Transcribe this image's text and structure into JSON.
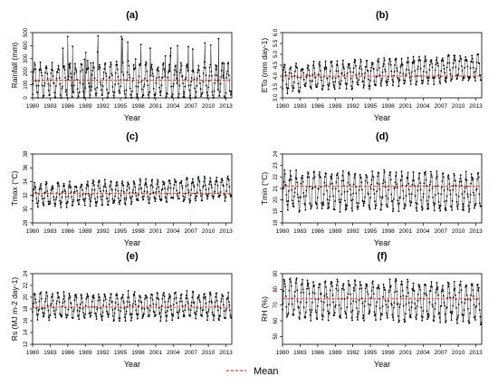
{
  "figure": {
    "mean_legend_label": "Mean",
    "colors": {
      "series": "#222222",
      "points": "#000000",
      "mean": "#e8413c",
      "axis": "#000000",
      "background": "#ffffff"
    }
  },
  "chart_data": [
    {
      "type": "line",
      "panel": "(a)",
      "ylabel": "Rainfall (mm)",
      "xlabel": "Year",
      "xlim": [
        1980,
        2014
      ],
      "ylim": [
        0,
        500
      ],
      "xticks": [
        "1980",
        "1983",
        "1986",
        "1989",
        "1992",
        "1995",
        "1998",
        "2001",
        "2004",
        "2007",
        "2010",
        "2013"
      ],
      "yticks": [
        "0",
        "100",
        "200",
        "300",
        "400",
        "500"
      ],
      "series": [
        {
          "x_start": 1980,
          "x_end": 2013.917,
          "step": "monthly",
          "seasonal_low": 10,
          "seasonal_high": 250,
          "peak_max": 480,
          "mean": 135
        }
      ]
    },
    {
      "type": "line",
      "panel": "(b)",
      "ylabel": "ETo (mm day-1)",
      "xlabel": "Year",
      "xlim": [
        1980,
        2014
      ],
      "ylim": [
        3.0,
        6.0
      ],
      "xticks": [
        "1980",
        "1983",
        "1986",
        "1989",
        "1992",
        "1995",
        "1998",
        "2001",
        "2004",
        "2007",
        "2010",
        "2013"
      ],
      "yticks": [
        "3.0",
        "3.5",
        "4.0",
        "4.5",
        "5.0",
        "5.5",
        "6.0"
      ],
      "series": [
        {
          "x_start": 1980,
          "x_end": 2013.917,
          "step": "monthly",
          "seasonal_low": 3.6,
          "seasonal_high": 4.7,
          "trend_per_year": 0.015,
          "mean": 4.0
        }
      ]
    },
    {
      "type": "line",
      "panel": "(c)",
      "ylabel": "Tmax (°C)",
      "xlabel": "Year",
      "xlim": [
        1980,
        2014
      ],
      "ylim": [
        28,
        38
      ],
      "xticks": [
        "1980",
        "1983",
        "1986",
        "1989",
        "1992",
        "1995",
        "1998",
        "2001",
        "2004",
        "2007",
        "2010",
        "2013"
      ],
      "yticks": [
        "28",
        "30",
        "32",
        "34",
        "36",
        "38"
      ],
      "series": [
        {
          "x_start": 1980,
          "x_end": 2013.917,
          "step": "monthly",
          "seasonal_low": 31.0,
          "seasonal_high": 34.0,
          "trend_per_year": 0.03,
          "mean": 32.3
        }
      ]
    },
    {
      "type": "line",
      "panel": "(d)",
      "ylabel": "Tmin (°C)",
      "xlabel": "Year",
      "xlim": [
        1980,
        2014
      ],
      "ylim": [
        18,
        24
      ],
      "xticks": [
        "1980",
        "1983",
        "1986",
        "1989",
        "1992",
        "1995",
        "1998",
        "2001",
        "2004",
        "2007",
        "2010",
        "2013"
      ],
      "yticks": [
        "18",
        "19",
        "20",
        "21",
        "22",
        "23",
        "24"
      ],
      "series": [
        {
          "x_start": 1980,
          "x_end": 2013.917,
          "step": "monthly",
          "seasonal_low": 19.3,
          "seasonal_high": 22.2,
          "mean": 21.2
        }
      ]
    },
    {
      "type": "line",
      "panel": "(e)",
      "ylabel": "Rs (MJ m-2 day-1)",
      "xlabel": "Year",
      "xlim": [
        1980,
        2014
      ],
      "ylim": [
        12,
        24
      ],
      "xticks": [
        "1980",
        "1983",
        "1986",
        "1989",
        "1992",
        "1995",
        "1998",
        "2001",
        "2004",
        "2007",
        "2010",
        "2013"
      ],
      "yticks": [
        "12",
        "14",
        "16",
        "18",
        "20",
        "22",
        "24"
      ],
      "series": [
        {
          "x_start": 1980,
          "x_end": 2013.917,
          "step": "monthly",
          "seasonal_low": 16.5,
          "seasonal_high": 20.5,
          "mean": 18.3
        }
      ]
    },
    {
      "type": "line",
      "panel": "(f)",
      "ylabel": "RH (%)",
      "xlabel": "Year",
      "xlim": [
        1980,
        2014
      ],
      "ylim": [
        45,
        90
      ],
      "xticks": [
        "1980",
        "1983",
        "1986",
        "1989",
        "1992",
        "1995",
        "1998",
        "2001",
        "2004",
        "2007",
        "2010",
        "2013"
      ],
      "yticks": [
        "50",
        "60",
        "70",
        "80",
        "90"
      ],
      "series": [
        {
          "x_start": 1980,
          "x_end": 2013.917,
          "step": "monthly",
          "seasonal_low": 62,
          "seasonal_high": 84,
          "trend_per_year": -0.08,
          "mean": 74
        }
      ]
    }
  ]
}
